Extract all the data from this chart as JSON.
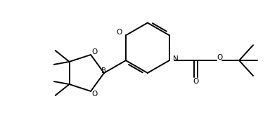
{
  "bg": "#ffffff",
  "lc": "#000000",
  "lw": 1.4,
  "fs": 7.5,
  "xlim": [
    0,
    3.84
  ],
  "ylim": [
    0,
    1.98
  ]
}
